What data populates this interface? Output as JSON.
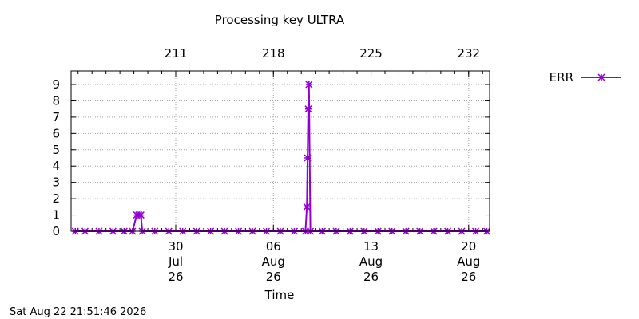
{
  "chart_data": {
    "type": "line",
    "title": "Processing key ULTRA",
    "xlabel": "Time",
    "ylabel": "",
    "ylim": [
      0,
      9
    ],
    "yticks": [
      0,
      1,
      2,
      3,
      4,
      5,
      6,
      7,
      8,
      9
    ],
    "xlim": [
      203.5,
      233.5
    ],
    "xticks_bottom": [
      {
        "x": 211,
        "lines": [
          "30",
          "Jul",
          "26"
        ]
      },
      {
        "x": 218,
        "lines": [
          "06",
          "Aug",
          "26"
        ]
      },
      {
        "x": 225,
        "lines": [
          "13",
          "Aug",
          "26"
        ]
      },
      {
        "x": 232,
        "lines": [
          "20",
          "Aug",
          "26"
        ]
      }
    ],
    "xticks_top": [
      {
        "x": 211,
        "label": "211"
      },
      {
        "x": 218,
        "label": "218"
      },
      {
        "x": 225,
        "label": "225"
      },
      {
        "x": 232,
        "label": "232"
      }
    ],
    "grid": true,
    "legend": "top-right",
    "series": [
      {
        "name": "ERR",
        "color": "#9400D3",
        "marker": "x-star",
        "points": [
          [
            203.8,
            0
          ],
          [
            204.5,
            0
          ],
          [
            205.5,
            0
          ],
          [
            206.5,
            0
          ],
          [
            207.3,
            0
          ],
          [
            207.9,
            0
          ],
          [
            208.2,
            1
          ],
          [
            208.35,
            1
          ],
          [
            208.5,
            1
          ],
          [
            208.6,
            0
          ],
          [
            209.5,
            0
          ],
          [
            210.5,
            0
          ],
          [
            211.5,
            0
          ],
          [
            212.5,
            0
          ],
          [
            213.5,
            0
          ],
          [
            214.5,
            0
          ],
          [
            215.5,
            0
          ],
          [
            216.5,
            0
          ],
          [
            217.5,
            0
          ],
          [
            218.5,
            0
          ],
          [
            219.5,
            0
          ],
          [
            220.3,
            0
          ],
          [
            220.4,
            1.5
          ],
          [
            220.45,
            4.5
          ],
          [
            220.5,
            7.5
          ],
          [
            220.55,
            9
          ],
          [
            220.65,
            0
          ],
          [
            221.5,
            0
          ],
          [
            222.5,
            0
          ],
          [
            223.5,
            0
          ],
          [
            224.5,
            0
          ],
          [
            225.5,
            0
          ],
          [
            226.5,
            0
          ],
          [
            227.5,
            0
          ],
          [
            228.5,
            0
          ],
          [
            229.5,
            0
          ],
          [
            230.5,
            0
          ],
          [
            231.5,
            0
          ],
          [
            232.5,
            0
          ],
          [
            233.3,
            0
          ]
        ]
      }
    ]
  },
  "timestamp": "Sat Aug 22 21:51:46 2026"
}
